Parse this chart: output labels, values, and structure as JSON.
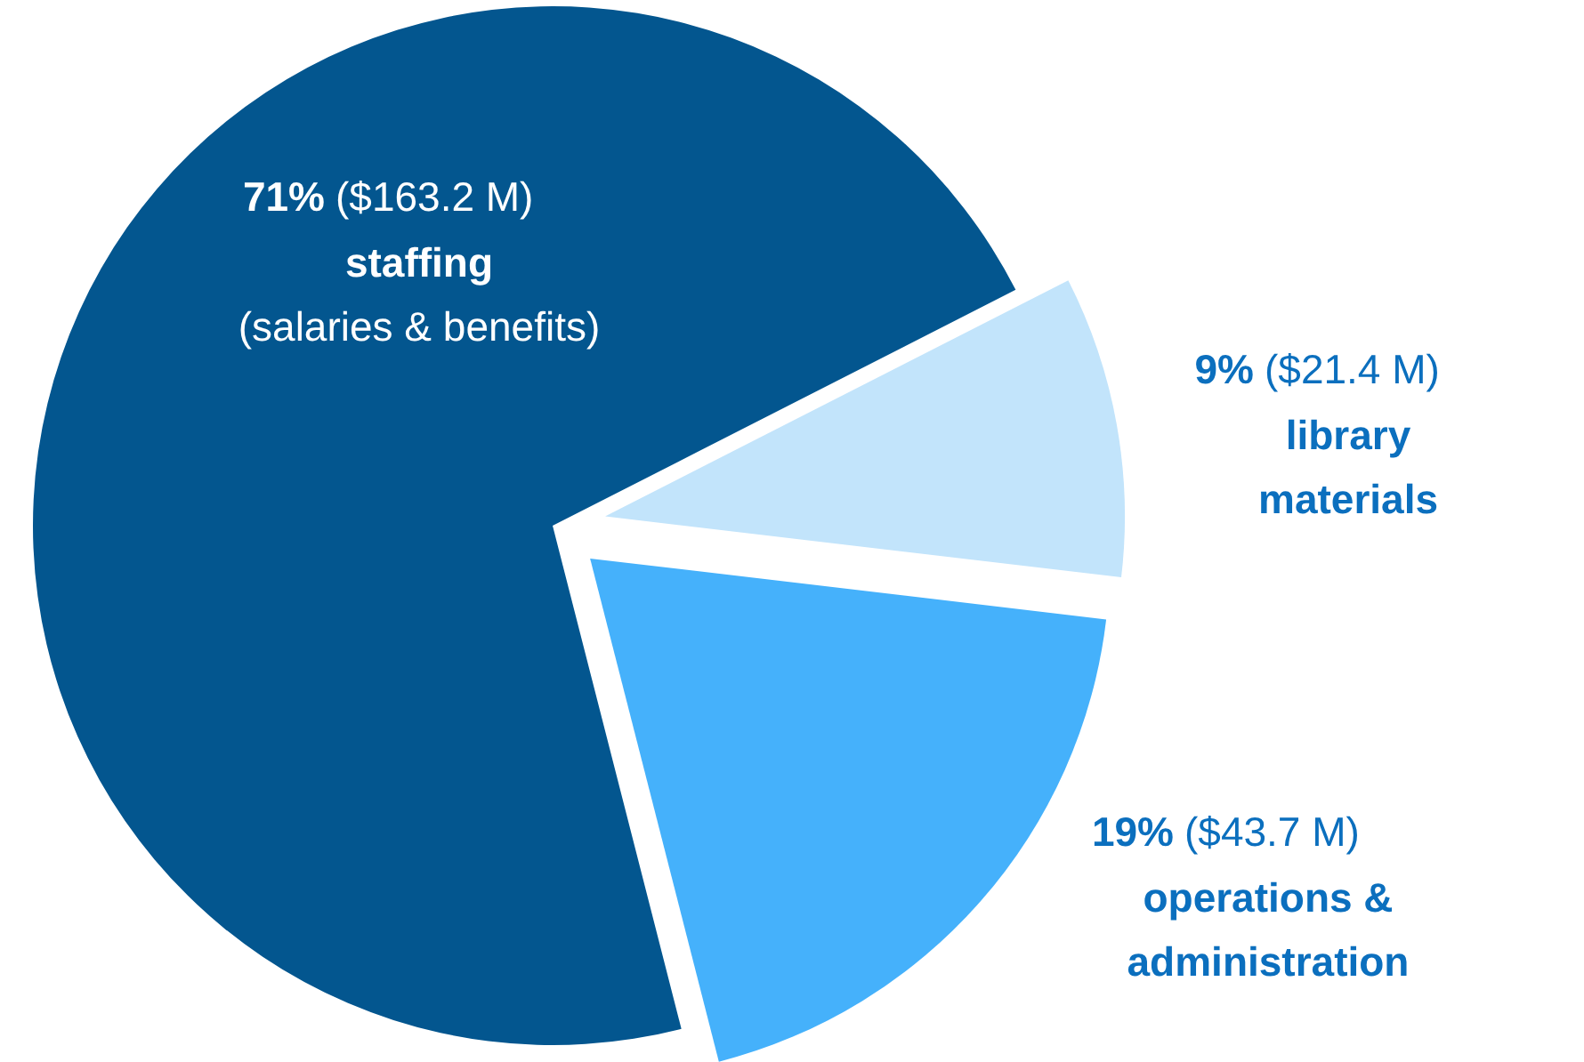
{
  "chart_data": {
    "type": "pie",
    "categories": [
      "staffing",
      "operations & administration",
      "library materials"
    ],
    "values": [
      163.2,
      43.7,
      21.4
    ],
    "value_labels": [
      "71% ($163.2 M)",
      "19% ($43.7 M)",
      "9% ($21.4 M)"
    ],
    "colors": [
      "#03568f",
      "#45b1fb",
      "#c2e4fb"
    ],
    "annotations": [
      "(salaries & benefits)"
    ]
  }
}
